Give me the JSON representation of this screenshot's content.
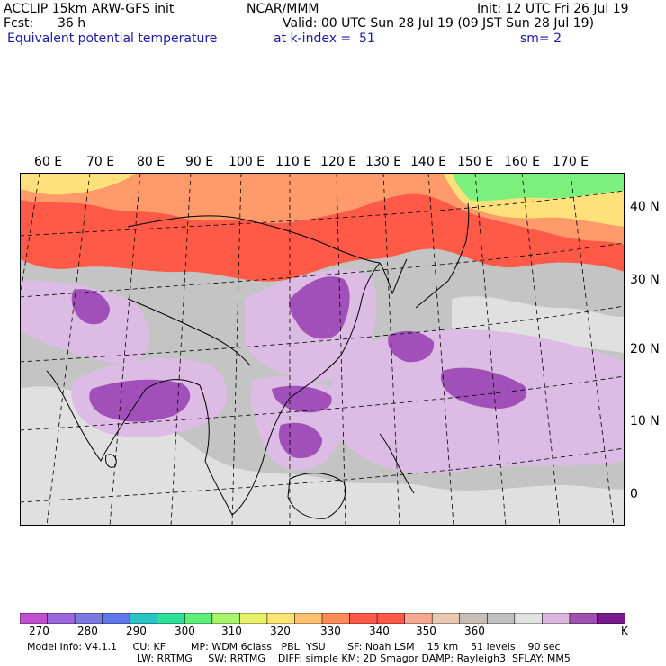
{
  "header": {
    "model": "ACCLIP 15km ARW-GFS init",
    "org": "NCAR/MMM",
    "init": "Init: 12 UTC Fri 26 Jul 19",
    "fcst_label": "Fcst:",
    "fcst_value": "36 h",
    "valid": "Valid: 00 UTC Sun 28 Jul 19 (09 JST Sun 28 Jul 19)",
    "field": "Equivalent potential temperature",
    "level": "at k-index =  51",
    "smooth": "sm= 2"
  },
  "lon_labels": [
    "60 E",
    "70 E",
    "80 E",
    "90 E",
    "100 E",
    "110 E",
    "120 E",
    "130 E",
    "140 E",
    "150 E",
    "160 E",
    "170 E"
  ],
  "lat_labels": [
    "40 N",
    "30 N",
    "20 N",
    "10 N",
    "0"
  ],
  "colorbar": {
    "colors": [
      "#c24fd0",
      "#9a68dc",
      "#7c78e4",
      "#5e78ec",
      "#2bc4c4",
      "#2ee09a",
      "#5cf07a",
      "#a8f46a",
      "#e8f06a",
      "#ffe474",
      "#ffc070",
      "#ff8c58",
      "#ff5a48",
      "#ff5a48",
      "#f8a890",
      "#e8c8b0",
      "#c8c0b8",
      "#c0c0c0",
      "#e2e2e2",
      "#dcb8e0",
      "#a050b0",
      "#7a1a90"
    ],
    "ticks": [
      "270",
      "280",
      "290",
      "300",
      "310",
      "320",
      "330",
      "340",
      "350",
      "360",
      "K"
    ]
  },
  "footer": {
    "line1": "Model Info: V4.1.1     CU: KF        MP: WDM 6class   PBL: YSU       SF: Noah LSM    15 km    51 levels    90 sec",
    "line2": "LW: RRTMG     SW: RRTMG    DIFF: simple KM: 2D Smagor DAMP: Rayleigh3  SFLAY: MM5"
  },
  "map_colors": {
    "grey": "#c4c4c4",
    "light_grey": "#e0e0e0",
    "lavender": "#dcbce4",
    "purple": "#a050b8",
    "orange": "#ff9a6a",
    "red_orange": "#ff5a48",
    "salmon": "#f8b49c",
    "yellow": "#ffe07a",
    "green": "#7cf07c"
  }
}
